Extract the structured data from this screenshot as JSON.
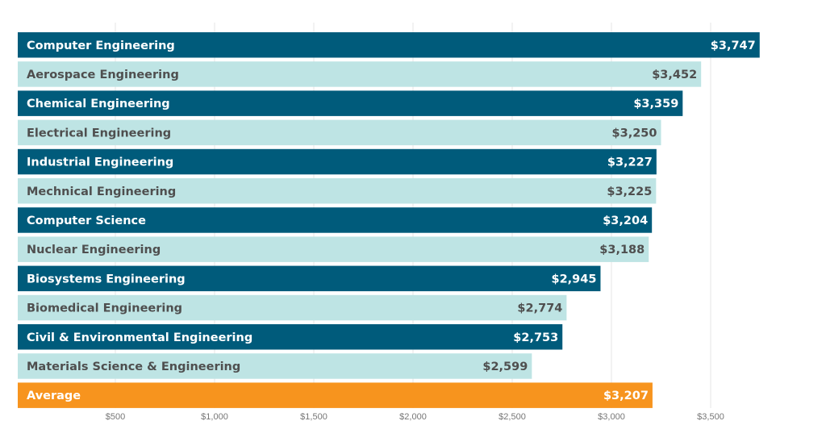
{
  "chart_data": {
    "type": "bar",
    "orientation": "horizontal",
    "categories": [
      "Computer Engineering",
      "Aerospace Engineering",
      "Chemical Engineering",
      "Electrical Engineering",
      "Industrial Engineering",
      "Mechnical Engineering",
      "Computer Science",
      "Nuclear Engineering",
      "Biosystems Engineering",
      "Biomedical Engineering",
      "Civil & Environmental Engineering",
      "Materials Science & Engineering",
      "Average"
    ],
    "values": [
      3747,
      3452,
      3359,
      3250,
      3227,
      3225,
      3204,
      3188,
      2945,
      2774,
      2753,
      2599,
      3207
    ],
    "data_labels": [
      "$3,747",
      "$3,452",
      "$3,359",
      "$3,250",
      "$3,227",
      "$3,225",
      "$3,204",
      "$3,188",
      "$2,945",
      "$2,774",
      "$2,753",
      "$2,599",
      "$3,207"
    ],
    "xticks": [
      500,
      1000,
      1500,
      2000,
      2500,
      3000,
      3500
    ],
    "xtick_labels": [
      "$500",
      "$1,000",
      "$1,500",
      "$2,000",
      "$2,500",
      "$3,000",
      "$3,500"
    ],
    "xlim": [
      0,
      4000
    ],
    "grid": "vertical",
    "title": "",
    "xlabel": "",
    "ylabel": "",
    "colors": {
      "dark": "#005b7b",
      "light": "#bee4e4",
      "average": "#f7941e",
      "dark_text": "#ffffff",
      "light_text": "#4f4f4f"
    }
  }
}
